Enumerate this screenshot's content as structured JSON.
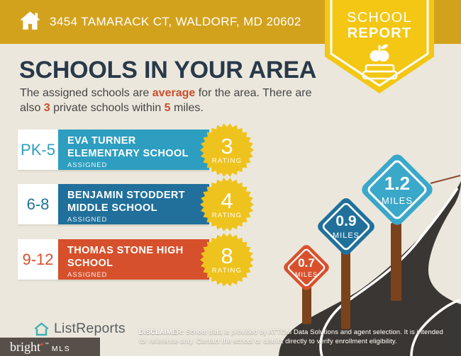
{
  "colors": {
    "topbar": "#d3a21d",
    "badge": "#f3c713",
    "background": "#ebe7dc",
    "title": "#28394a",
    "accent": "#cc4e2d",
    "burst": "#efc31d",
    "road": "#3a3633",
    "post": "#7b431c",
    "footer_box": "#57504a",
    "logo_teal": "#3fafb3"
  },
  "header": {
    "address": "3454 TAMARACK CT, WALDORF, MD 20602",
    "badge_line1": "SCHOOL",
    "badge_line2": "REPORT"
  },
  "intro": {
    "title": "SCHOOLS IN YOUR AREA",
    "p1": "The assigned schools are ",
    "em1": "average",
    "p2": " for the area. There are also ",
    "em2": "3",
    "p3": " private schools within ",
    "em3": "5",
    "p4": " miles."
  },
  "schools": [
    {
      "grades": "PK-5",
      "line1": "EVA TURNER",
      "line2": "ELEMENTARY SCHOOL",
      "status": "ASSIGNED",
      "rating": "3",
      "rating_label": "RATING",
      "color": "#2d9ec0"
    },
    {
      "grades": "6-8",
      "line1": "BENJAMIN STODDERT",
      "line2": "MIDDLE SCHOOL",
      "status": "ASSIGNED",
      "rating": "4",
      "rating_label": "RATING",
      "color": "#20709b"
    },
    {
      "grades": "9-12",
      "line1": "THOMAS STONE HIGH",
      "line2": "SCHOOL",
      "status": "ASSIGNED",
      "rating": "8",
      "rating_label": "RATING",
      "color": "#d6502c"
    }
  ],
  "signs": [
    {
      "value": "1.2",
      "unit": "MILES",
      "color": "#3aa8c9"
    },
    {
      "value": "0.9",
      "unit": "MILES",
      "color": "#20709b"
    },
    {
      "value": "0.7",
      "unit": "MILES",
      "color": "#d8512c"
    }
  ],
  "footer": {
    "logo_text": "ListReports",
    "bright": "bright",
    "bright_plus": "+",
    "tm": "™",
    "mls": "MLS",
    "disclaimer_label": "DISCLAIMER:",
    "disclaimer_line1": " School data is provided by ATTOM Data Solutions and agent selection. It is intended",
    "disclaimer_line2": "for reference only. Contact the school or district directly to verify enrollment eligibility."
  }
}
